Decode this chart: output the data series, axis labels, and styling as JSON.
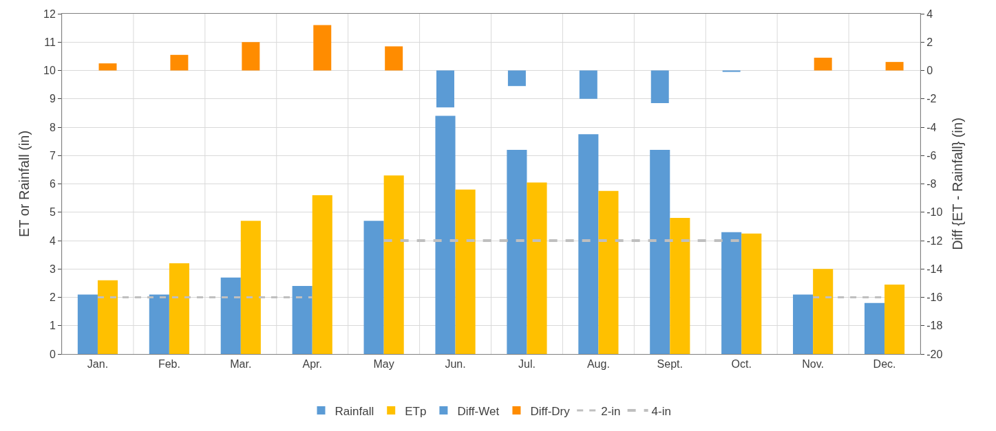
{
  "chart_data": {
    "type": "bar",
    "ylabel": "ET or Rainfall (in)",
    "y2label": "Diff {ET - Rainfall} (in)",
    "categories": [
      "Jan.",
      "Feb.",
      "Mar.",
      "Apr.",
      "May",
      "Jun.",
      "Jul.",
      "Aug.",
      "Sept.",
      "Oct.",
      "Nov.",
      "Dec."
    ],
    "series": [
      {
        "name": "Rainfall",
        "color": "#5b9bd5",
        "values": [
          2.1,
          2.1,
          2.7,
          2.4,
          4.7,
          8.4,
          7.2,
          7.75,
          7.2,
          4.3,
          2.1,
          1.8
        ]
      },
      {
        "name": "ETp",
        "color": "#ffc000",
        "values": [
          2.6,
          3.2,
          4.7,
          5.6,
          6.3,
          5.8,
          6.05,
          5.75,
          4.8,
          4.25,
          3.0,
          2.45
        ]
      },
      {
        "name": "Diff-Wet",
        "color": "#5b9bd5",
        "axis": "y2",
        "values": [
          null,
          null,
          null,
          null,
          null,
          -2.6,
          -1.1,
          -2.0,
          -2.3,
          -0.1,
          null,
          null
        ]
      },
      {
        "name": "Diff-Dry",
        "color": "#ff8c00",
        "axis": "y2",
        "values": [
          0.5,
          1.1,
          2.0,
          3.2,
          1.7,
          null,
          null,
          null,
          null,
          null,
          0.9,
          0.6
        ]
      },
      {
        "name": "2-in",
        "type": "line",
        "color": "#bfbfbf",
        "line_style": "dashed",
        "marker": "none",
        "values": [
          2,
          2,
          2,
          2,
          null,
          null,
          null,
          null,
          null,
          null,
          2,
          2
        ]
      },
      {
        "name": "4-in",
        "type": "line",
        "color": "#bfbfbf",
        "line_style": "dashed",
        "marker": "none",
        "values": [
          null,
          null,
          null,
          null,
          4,
          4,
          4,
          4,
          4,
          4,
          null,
          null
        ]
      }
    ],
    "ylim": [
      0,
      12
    ],
    "yticks": [
      0,
      1,
      2,
      3,
      4,
      5,
      6,
      7,
      8,
      9,
      10,
      11,
      12
    ],
    "y2lim": [
      -20,
      4
    ],
    "y2ticks": [
      -20,
      -18,
      -16,
      -14,
      -12,
      -10,
      -8,
      -6,
      -4,
      -2,
      0,
      2,
      4
    ],
    "grid": true,
    "legend": "bottom"
  }
}
